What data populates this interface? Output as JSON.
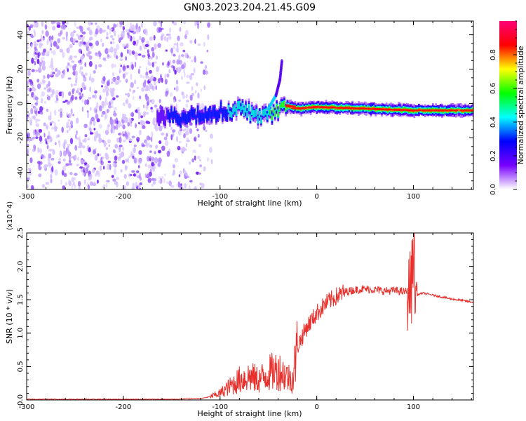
{
  "title": "GN03.2023.204.21.45.G09",
  "chart_data": [
    {
      "type": "heatmap",
      "xlabel": "Height of straight line (km)",
      "ylabel": "Frequency (Hz)",
      "xlim": [
        -300,
        162
      ],
      "ylim": [
        -50,
        48
      ],
      "xticks": [
        -300,
        -200,
        -100,
        0,
        100
      ],
      "xtick_labels": [
        "-300",
        "-200",
        "-100",
        "0",
        "100"
      ],
      "yticks": [
        -40,
        -20,
        0,
        20,
        40
      ],
      "ytick_labels": [
        "-40",
        "-20",
        "0",
        "20",
        "40"
      ],
      "colorbar": {
        "label": "Normalized spectral amplitude",
        "range": [
          0.0,
          1.0
        ],
        "ticks": [
          0.0,
          0.2,
          0.4,
          0.6,
          0.8
        ],
        "tick_labels": [
          "0.0",
          "0.2",
          "0.4",
          "0.6",
          "0.8"
        ],
        "colormap": [
          "#ffffff",
          "#7700ff",
          "#0000ff",
          "#00ffff",
          "#00ff00",
          "#ffff00",
          "#ff0000",
          "#ff0077"
        ]
      },
      "features": {
        "noise_region_x": [
          -300,
          -120
        ],
        "ridge": [
          {
            "x": -165,
            "freq": -8,
            "amp": 0.2
          },
          {
            "x": -140,
            "freq": -8,
            "amp": 0.25
          },
          {
            "x": -120,
            "freq": -7,
            "amp": 0.3
          },
          {
            "x": -100,
            "freq": -5,
            "amp": 0.35
          },
          {
            "x": -80,
            "freq": -3,
            "amp": 0.4
          },
          {
            "x": -60,
            "freq": -7,
            "amp": 0.45
          },
          {
            "x": -45,
            "freq": -6,
            "amp": 0.55
          },
          {
            "x": -35,
            "freq": 0,
            "amp": 0.7
          },
          {
            "x": -20,
            "freq": -3,
            "amp": 0.8
          },
          {
            "x": 0,
            "freq": -2,
            "amp": 0.9
          },
          {
            "x": 50,
            "freq": -3,
            "amp": 0.9
          },
          {
            "x": 100,
            "freq": -4,
            "amp": 0.9
          },
          {
            "x": 162,
            "freq": -4,
            "amp": 0.85
          }
        ],
        "branch": [
          {
            "x": -50,
            "freq": -3
          },
          {
            "x": -42,
            "freq": 5
          },
          {
            "x": -38,
            "freq": 14
          },
          {
            "x": -36,
            "freq": 25
          }
        ]
      }
    },
    {
      "type": "line",
      "xlabel": "Height of straight line (km)",
      "ylabel": "SNR (10 * v/v)",
      "ylabel_exponent": "(x10^4)",
      "xlim": [
        -300,
        162
      ],
      "ylim": [
        0,
        2.5
      ],
      "xticks": [
        -300,
        -200,
        -100,
        0,
        100
      ],
      "xtick_labels": [
        "-300",
        "-200",
        "-100",
        "0",
        "100"
      ],
      "yticks": [
        0.0,
        0.5,
        1.0,
        1.5,
        2.0,
        2.5
      ],
      "ytick_labels": [
        "0.0",
        "0.5",
        "1.0",
        "1.5",
        "2.0",
        "2.5"
      ],
      "color": "#e8312d",
      "series": [
        {
          "x": [
            -300,
            -250,
            -200,
            -150,
            -120,
            -110,
            -100,
            -90,
            -80,
            -70,
            -60,
            -50,
            -40,
            -30,
            -25,
            -20,
            -10,
            0,
            10,
            20,
            30,
            40,
            50,
            60,
            70,
            80,
            90,
            95,
            98,
            100,
            102,
            105,
            110,
            120,
            130,
            140,
            150,
            162
          ],
          "values": [
            0.01,
            0.01,
            0.01,
            0.01,
            0.02,
            0.05,
            0.1,
            0.2,
            0.3,
            0.35,
            0.3,
            0.4,
            0.45,
            0.35,
            0.3,
            0.8,
            1.1,
            1.3,
            1.45,
            1.55,
            1.62,
            1.65,
            1.66,
            1.65,
            1.63,
            1.64,
            1.62,
            1.63,
            1.7,
            2.4,
            1.55,
            1.58,
            1.6,
            1.57,
            1.54,
            1.51,
            1.49,
            1.46
          ]
        }
      ]
    }
  ]
}
